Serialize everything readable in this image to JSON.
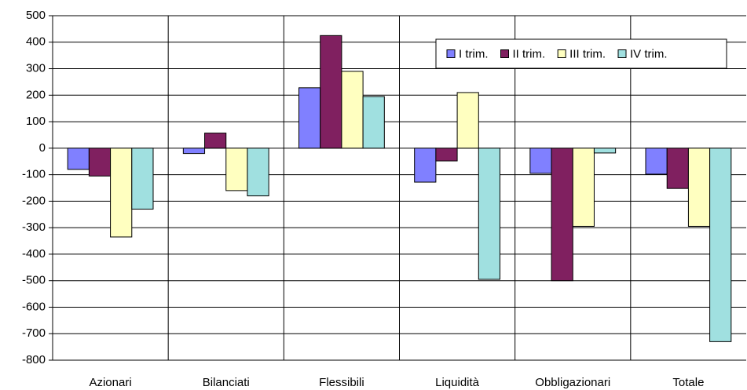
{
  "chart_data": {
    "type": "bar",
    "categories": [
      "Azionari",
      "Bilanciati",
      "Flessibili",
      "Liquidità",
      "Obbligazionari",
      "Totale"
    ],
    "series": [
      {
        "name": "I trim.",
        "color": "#8080ff",
        "values": [
          -80,
          -20,
          228,
          -128,
          -95,
          -98
        ]
      },
      {
        "name": "II trim.",
        "color": "#802060",
        "values": [
          -105,
          57,
          425,
          -48,
          -500,
          -152
        ]
      },
      {
        "name": "III trim.",
        "color": "#ffffc0",
        "values": [
          -335,
          -160,
          290,
          210,
          -295,
          -295
        ]
      },
      {
        "name": "IV trim.",
        "color": "#a0e0e0",
        "values": [
          -230,
          -180,
          195,
          -495,
          -18,
          -730
        ]
      }
    ],
    "ylim": [
      -800,
      500
    ],
    "yticks": [
      -800,
      -700,
      -600,
      -500,
      -400,
      -300,
      -200,
      -100,
      0,
      100,
      200,
      300,
      400,
      500
    ],
    "grid": true,
    "legend": "top-right"
  }
}
